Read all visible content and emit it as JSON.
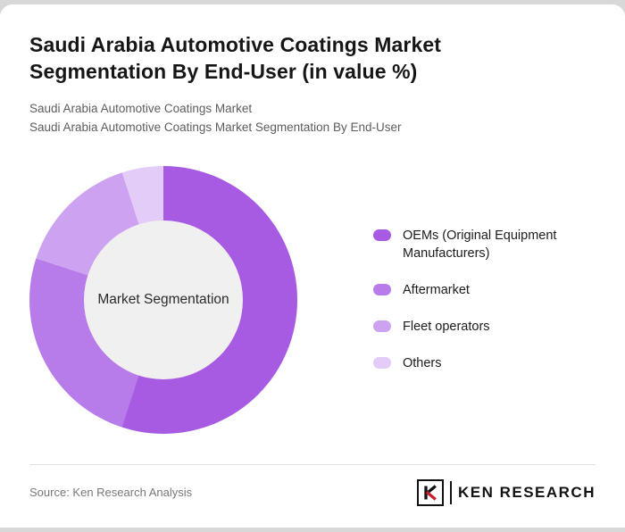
{
  "header": {
    "title": "Saudi Arabia Automotive Coatings Market Segmentation By End-User (in value %)",
    "subtitle1": "Saudi Arabia Automotive Coatings Market",
    "subtitle2": "Saudi Arabia Automotive Coatings Market Segmentation By End-User"
  },
  "chart_data": {
    "type": "pie",
    "subtype": "donut",
    "title": "Saudi Arabia Automotive Coatings Market Segmentation By End-User (in value %)",
    "center_label": "Market Segmentation",
    "labels": [
      "OEMs (Original Equipment Manufacturers)",
      "Aftermarket",
      "Fleet operators",
      "Others"
    ],
    "values": [
      55,
      25,
      15,
      5
    ],
    "colors": [
      "#a75be2",
      "#b87cea",
      "#cda3f1",
      "#e3ccf8"
    ],
    "hole_color": "#f0f0f0",
    "legend_position": "right",
    "start_angle_deg": 0,
    "direction": "clockwise"
  },
  "footer": {
    "source": "Source: Ken Research Analysis",
    "logo_text": "KEN RESEARCH"
  }
}
